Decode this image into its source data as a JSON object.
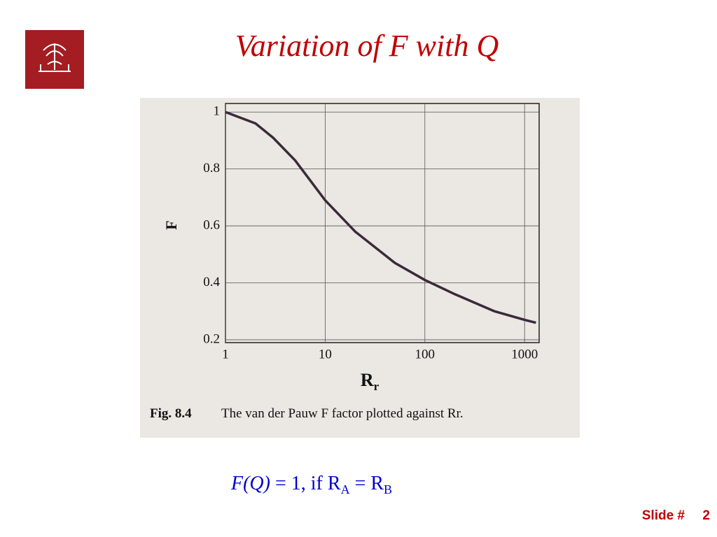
{
  "slide_title": "Variation of F with Q",
  "chart_data": {
    "type": "line",
    "x_log": true,
    "grid": true,
    "color": "#3a2a3a",
    "y_label": "F",
    "x_label": "R",
    "x_label_subscript": "r",
    "caption_number": "Fig. 8.4",
    "caption_text": "The van der Pauw F factor plotted against Rr.",
    "x": [
      1,
      2,
      3,
      5,
      10,
      20,
      50,
      100,
      200,
      500,
      1000,
      1300
    ],
    "values": [
      1,
      0.96,
      0.91,
      0.83,
      0.69,
      0.58,
      0.47,
      0.41,
      0.36,
      0.3,
      0.27,
      0.26
    ],
    "xlim": [
      1,
      1400
    ],
    "xticks": [
      1,
      10,
      100,
      1000
    ],
    "ylim": [
      0.19,
      1.03
    ],
    "yticks": [
      0.2,
      0.4,
      0.6,
      0.8,
      1
    ]
  },
  "formula": {
    "lhs": "F(Q)",
    "rest": "= 1, if R",
    "sub_a": "A",
    "eq": "= R",
    "sub_b": "B"
  },
  "slide_label": "Slide #",
  "slide_number": "2"
}
